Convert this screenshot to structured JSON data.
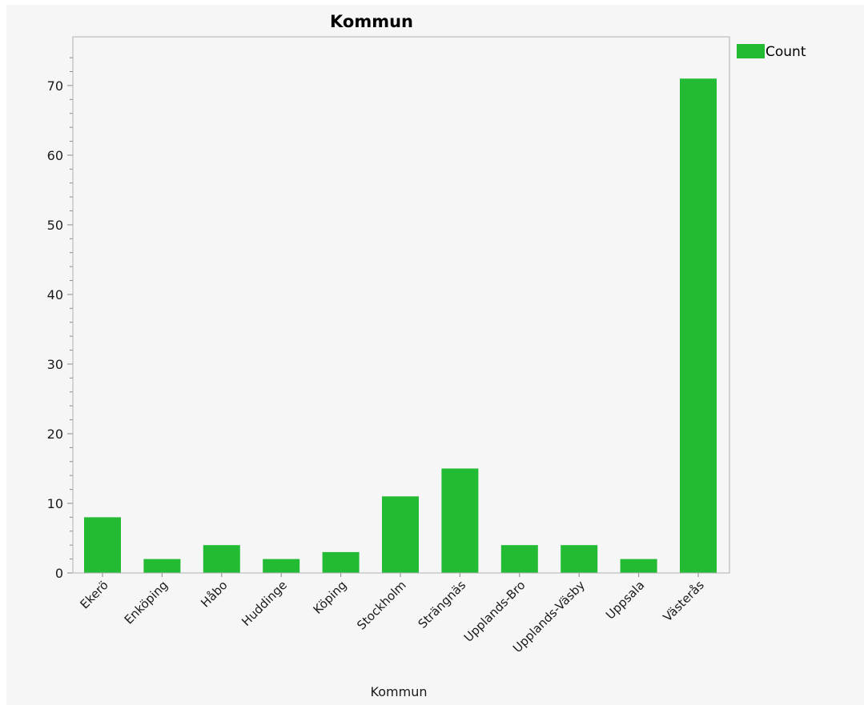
{
  "chart_data": {
    "type": "bar",
    "title": "Kommun",
    "xlabel": "Kommun",
    "ylabel": "",
    "categories": [
      "Ekerö",
      "Enköping",
      "Håbo",
      "Huddinge",
      "Köping",
      "Stockholm",
      "Strängnäs",
      "Upplands-Bro",
      "Upplands-Väsby",
      "Uppsala",
      "Västerås"
    ],
    "series": [
      {
        "name": "Count",
        "values": [
          8,
          2,
          4,
          2,
          3,
          11,
          15,
          4,
          4,
          2,
          71
        ],
        "color": "#22bb33"
      }
    ],
    "ylim": [
      0,
      77
    ],
    "yticks": [
      0,
      10,
      20,
      30,
      40,
      50,
      60,
      70
    ],
    "grid": false,
    "legend_position": "top-right"
  }
}
